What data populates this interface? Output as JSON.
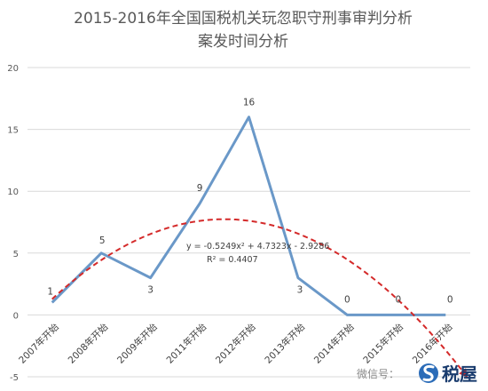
{
  "chart_data": {
    "type": "line",
    "title": "2015-2016年全国国税机关玩忽职守刑事审判分析",
    "subtitle": "案发时间分析",
    "categories": [
      "2007年开始",
      "2008年开始",
      "2009年开始",
      "2011年开始",
      "2012年开始",
      "2013年开始",
      "2014年开始",
      "2015年开始",
      "2016年开始"
    ],
    "series": [
      {
        "values": [
          1,
          5,
          3,
          9,
          16,
          3,
          0,
          0,
          0
        ],
        "color": "#6a98c8"
      }
    ],
    "trendline": {
      "type": "polynomial",
      "order": 2,
      "coefficients": [
        -0.5249,
        4.7323,
        -2.9286
      ],
      "equation": "y = -0.5249x² + 4.7323x - 2.9286",
      "r_squared": "R² = 0.4407",
      "color": "#d42a2a"
    },
    "y_ticks": [
      "-5",
      "0",
      "5",
      "10",
      "15",
      "20"
    ],
    "ylim": [
      -5,
      20
    ],
    "grid": true
  },
  "watermark": {
    "text": "微信号：",
    "brand": "税屋",
    "brand_icon": "s-logo-icon"
  }
}
